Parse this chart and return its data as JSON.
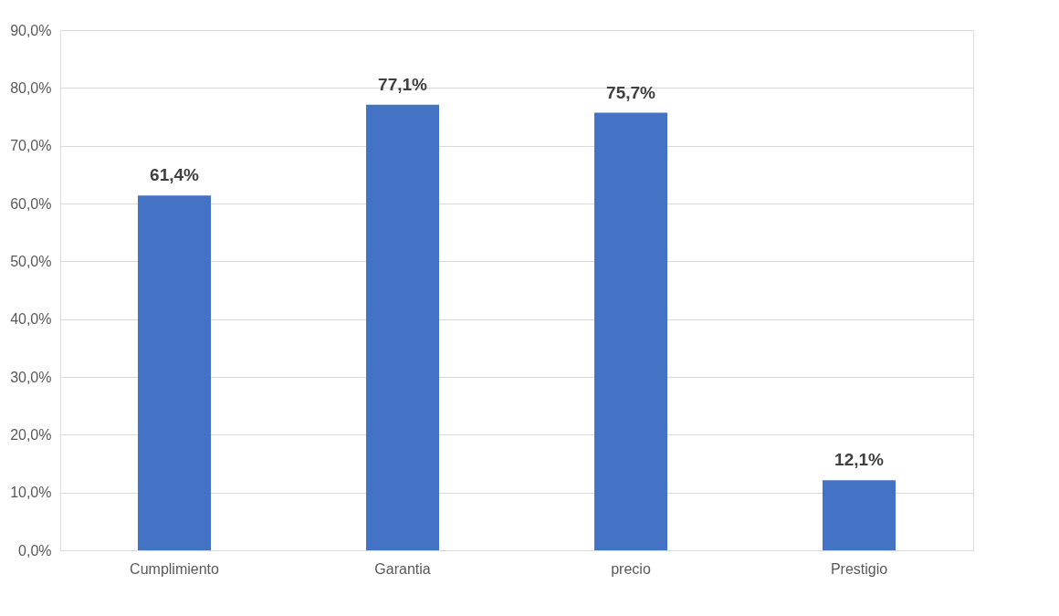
{
  "chart_data": {
    "type": "bar",
    "categories": [
      "Cumplimiento",
      "Garantia",
      "precio",
      "Prestigio"
    ],
    "values": [
      61.4,
      77.1,
      75.7,
      12.1
    ],
    "color": "#4472c4",
    "value_labels": [
      "61,4%",
      "77,1%",
      "75,7%",
      "12,1%"
    ],
    "ylim": [
      0,
      90
    ],
    "yticks": [
      {
        "value": 0,
        "label": "0,0%"
      },
      {
        "value": 10,
        "label": "10,0%"
      },
      {
        "value": 20,
        "label": "20,0%"
      },
      {
        "value": 30,
        "label": "30,0%"
      },
      {
        "value": 40,
        "label": "40,0%"
      },
      {
        "value": 50,
        "label": "50,0%"
      },
      {
        "value": 60,
        "label": "60,0%"
      },
      {
        "value": 70,
        "label": "70,0%"
      },
      {
        "value": 80,
        "label": "80,0%"
      },
      {
        "value": 90,
        "label": "90,0%"
      }
    ],
    "grid": "y"
  }
}
